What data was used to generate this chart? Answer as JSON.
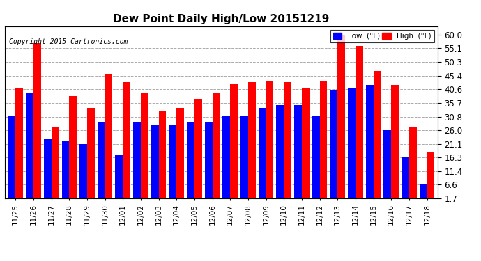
{
  "title": "Dew Point Daily High/Low 20151219",
  "copyright": "Copyright 2015 Cartronics.com",
  "dates": [
    "11/25",
    "11/26",
    "11/27",
    "11/28",
    "11/29",
    "11/30",
    "12/01",
    "12/02",
    "12/03",
    "12/04",
    "12/05",
    "12/06",
    "12/07",
    "12/08",
    "12/09",
    "12/10",
    "12/11",
    "12/12",
    "12/13",
    "12/14",
    "12/15",
    "12/16",
    "12/17",
    "12/18"
  ],
  "low_values": [
    31.0,
    39.0,
    23.0,
    22.0,
    21.0,
    29.0,
    17.0,
    29.0,
    28.0,
    28.0,
    29.0,
    29.0,
    31.0,
    31.0,
    34.0,
    35.0,
    35.0,
    31.0,
    40.0,
    41.0,
    42.0,
    26.0,
    16.5,
    7.0
  ],
  "high_values": [
    41.0,
    57.0,
    27.0,
    38.0,
    34.0,
    46.0,
    43.0,
    39.0,
    33.0,
    34.0,
    37.0,
    39.0,
    42.5,
    43.0,
    43.5,
    43.0,
    41.0,
    43.5,
    60.0,
    56.0,
    47.0,
    42.0,
    27.0,
    18.0
  ],
  "low_color": "#0000FF",
  "high_color": "#FF0000",
  "bg_color": "#FFFFFF",
  "grid_color": "#AAAAAA",
  "yticks": [
    1.7,
    6.6,
    11.4,
    16.3,
    21.1,
    26.0,
    30.8,
    35.7,
    40.6,
    45.4,
    50.3,
    55.1,
    60.0
  ],
  "ymin": 1.7,
  "ymax": 63.0,
  "bar_width": 0.42
}
